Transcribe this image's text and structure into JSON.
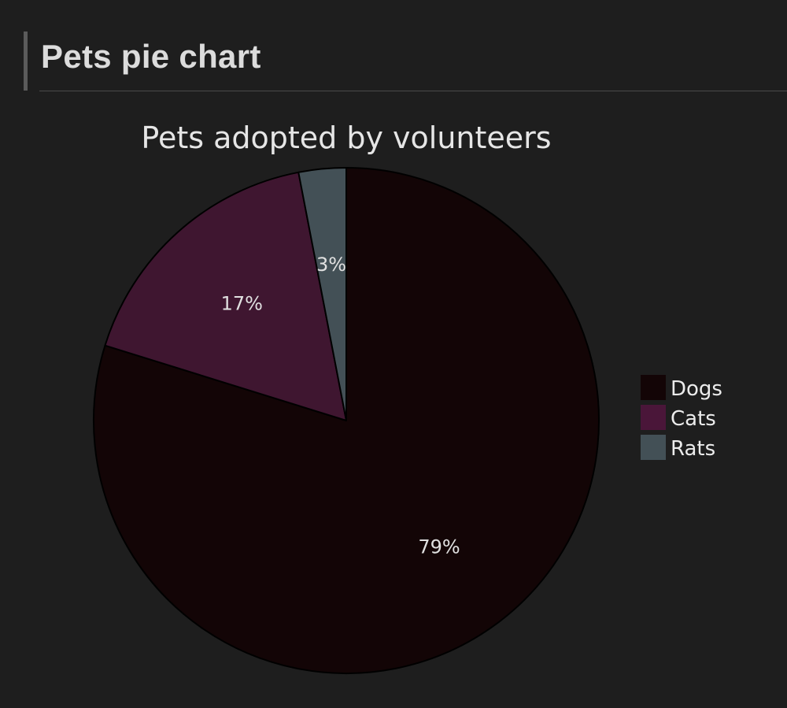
{
  "page": {
    "heading": "Pets pie chart"
  },
  "chart_data": {
    "type": "pie",
    "title": "Pets adopted by volunteers",
    "categories": [
      "Dogs",
      "Cats",
      "Rats"
    ],
    "values": [
      79,
      17,
      3
    ],
    "labels": [
      "79%",
      "17%",
      "3%"
    ],
    "colors": [
      "#130506",
      "#3f1630",
      "#435056"
    ],
    "start_angle_deg": 0,
    "direction": "clockwise",
    "legend_position": "right",
    "legend": [
      {
        "label": "Dogs",
        "color": "#130506"
      },
      {
        "label": "Cats",
        "color": "#4a1639"
      },
      {
        "label": "Rats",
        "color": "#435056"
      }
    ]
  }
}
